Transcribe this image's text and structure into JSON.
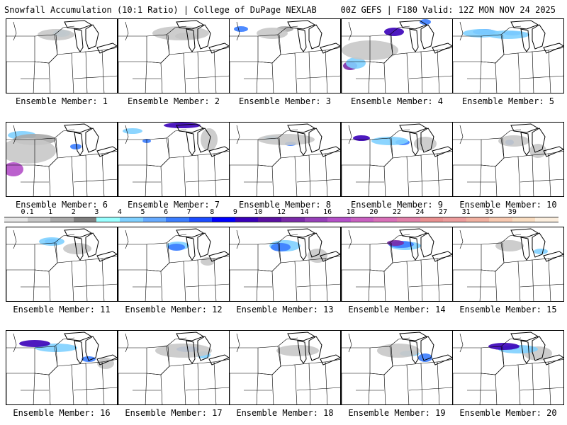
{
  "header": {
    "title": "Snowfall Accumulation (10:1 Ratio) | College of DuPage NEXLAB",
    "run_info": "00Z GEFS | F180 Valid: 12Z MON NOV 24 2025"
  },
  "legend": {
    "labels": [
      "0.1",
      "1",
      "2",
      "3",
      "4",
      "5",
      "6",
      "7",
      "8",
      "9",
      "10",
      "12",
      "14",
      "16",
      "18",
      "20",
      "22",
      "24",
      "27",
      "31",
      "35",
      "39"
    ],
    "colors": [
      "#e6e6e6",
      "#c8c8c8",
      "#a9a9a9",
      "#7f7f7f",
      "#99ffff",
      "#7fd0ff",
      "#66aaff",
      "#3b7dff",
      "#1c4cff",
      "#0000ff",
      "#3a00b8",
      "#5a10a0",
      "#7a2aa8",
      "#9640b8",
      "#b450c8",
      "#c860c0",
      "#d870b8",
      "#e080a8",
      "#e89090",
      "#ec9c9c",
      "#f0b0a0",
      "#f6c8b0",
      "#f8dcc0",
      "#fbeede"
    ]
  },
  "members": [
    {
      "label": "Ensemble Member: 1"
    },
    {
      "label": "Ensemble Member: 2"
    },
    {
      "label": "Ensemble Member: 3"
    },
    {
      "label": "Ensemble Member: 4"
    },
    {
      "label": "Ensemble Member: 5"
    },
    {
      "label": "Ensemble Member: 6"
    },
    {
      "label": "Ensemble Member: 7"
    },
    {
      "label": "Ensemble Member: 8"
    },
    {
      "label": "Ensemble Member: 9"
    },
    {
      "label": "Ensemble Member: 10"
    },
    {
      "label": "Ensemble Member: 11"
    },
    {
      "label": "Ensemble Member: 12"
    },
    {
      "label": "Ensemble Member: 13"
    },
    {
      "label": "Ensemble Member: 14"
    },
    {
      "label": "Ensemble Member: 15"
    },
    {
      "label": "Ensemble Member: 16"
    },
    {
      "label": "Ensemble Member: 17"
    },
    {
      "label": "Ensemble Member: 18"
    },
    {
      "label": "Ensemble Member: 19"
    },
    {
      "label": "Ensemble Member: 20"
    }
  ]
}
